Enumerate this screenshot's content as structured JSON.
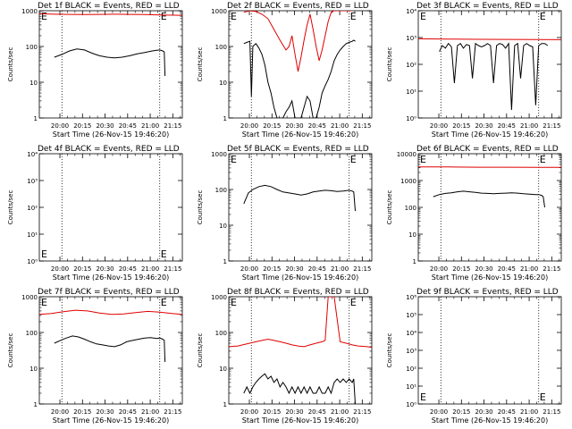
{
  "colors": {
    "events": "#000000",
    "lld": "#e00000",
    "axis": "#000000",
    "background": "#ffffff"
  },
  "common": {
    "ylabel": "Counts/sec",
    "xlabel": "Start Time (26-Nov-15 19:46:20)",
    "xticks": [
      "20:00",
      "20:15",
      "20:30",
      "20:45",
      "21:00",
      "21:15"
    ],
    "xlim_minutes_after_start": [
      0,
      95
    ],
    "xtick_minutes_after_start": [
      13.67,
      28.67,
      43.67,
      58.67,
      73.67,
      88.67
    ],
    "eclipse_marks_minutes_after_start": [
      15,
      80
    ],
    "eclipse_label": "E",
    "yscale": "log"
  },
  "chart_data": [
    {
      "id": "det1f",
      "title": "Det 1f  BLACK = Events, RED = LLD",
      "type": "line",
      "ylim": [
        1,
        1000
      ],
      "yticks": [
        "1",
        "10",
        "100",
        "1000"
      ],
      "ticks_exp": [
        0,
        1,
        2,
        3
      ],
      "minor": true,
      "series": [
        {
          "role": "events",
          "x": [
            10,
            15,
            20,
            25,
            30,
            35,
            40,
            45,
            50,
            55,
            60,
            65,
            70,
            75,
            78,
            80,
            82,
            83,
            83.5
          ],
          "y": [
            50,
            60,
            75,
            85,
            80,
            65,
            55,
            50,
            48,
            50,
            55,
            62,
            68,
            75,
            78,
            80,
            75,
            70,
            15
          ]
        },
        {
          "role": "lld",
          "x": [
            0,
            10,
            20,
            30,
            40,
            50,
            60,
            70,
            80,
            90,
            95
          ],
          "y": [
            820,
            800,
            790,
            780,
            790,
            800,
            790,
            780,
            760,
            750,
            740
          ]
        }
      ]
    },
    {
      "id": "det2f",
      "title": "Det 2f  BLACK = Events, RED = LLD",
      "type": "line",
      "ylim": [
        1,
        1000
      ],
      "yticks": [
        "1",
        "10",
        "100",
        "1000"
      ],
      "ticks_exp": [
        0,
        1,
        2,
        3
      ],
      "minor": true,
      "series": [
        {
          "role": "events",
          "x": [
            10,
            12,
            14,
            15,
            16,
            18,
            20,
            22,
            24,
            26,
            28,
            30,
            32,
            34,
            36,
            38,
            40,
            42,
            44,
            46,
            48,
            50,
            52,
            54,
            56,
            58,
            60,
            62,
            64,
            66,
            68,
            70,
            72,
            74,
            76,
            78,
            80,
            82,
            83,
            84
          ],
          "y": [
            120,
            130,
            140,
            4,
            100,
            120,
            90,
            60,
            30,
            10,
            5,
            2,
            1,
            1,
            1,
            1.5,
            2,
            3,
            1,
            1,
            1,
            2,
            4,
            3,
            1,
            1,
            2,
            5,
            8,
            12,
            20,
            40,
            60,
            80,
            100,
            120,
            130,
            140,
            150,
            140
          ]
        },
        {
          "role": "lld",
          "x": [
            10,
            14,
            18,
            22,
            26,
            30,
            34,
            38,
            40,
            42,
            44,
            46,
            48,
            50,
            52,
            54,
            56,
            58,
            60,
            62,
            64,
            66,
            68,
            70,
            74,
            78,
            82
          ],
          "y": [
            900,
            1000,
            950,
            800,
            600,
            300,
            150,
            80,
            100,
            200,
            60,
            20,
            50,
            150,
            400,
            800,
            300,
            100,
            40,
            80,
            200,
            500,
            900,
            1000,
            1000,
            1000,
            1000
          ]
        }
      ]
    },
    {
      "id": "det3f",
      "title": "Det 3f  BLACK = Events, RED = LLD",
      "type": "line",
      "ylim": [
        1,
        10000.0
      ],
      "yticks": [
        "10⁰",
        "10¹",
        "10²",
        "10³",
        "10⁴"
      ],
      "ticks_exp": [
        0,
        1,
        2,
        3,
        4
      ],
      "minor": false,
      "series": [
        {
          "role": "events",
          "x": [
            14,
            16,
            18,
            20,
            22,
            24,
            26,
            28,
            30,
            32,
            34,
            36,
            38,
            40,
            42,
            44,
            46,
            48,
            50,
            52,
            54,
            56,
            58,
            60,
            62,
            64,
            66,
            68,
            70,
            72,
            74,
            76,
            78,
            80,
            82,
            84,
            86
          ],
          "y": [
            300,
            500,
            400,
            600,
            450,
            20,
            500,
            600,
            400,
            550,
            500,
            30,
            600,
            500,
            450,
            500,
            600,
            500,
            20,
            500,
            600,
            550,
            400,
            600,
            2,
            500,
            600,
            30,
            500,
            600,
            500,
            450,
            3,
            500,
            600,
            600,
            500
          ]
        },
        {
          "role": "lld",
          "x": [
            0,
            20,
            40,
            60,
            80,
            95
          ],
          "y": [
            900,
            880,
            860,
            850,
            840,
            830
          ]
        }
      ]
    },
    {
      "id": "det4f",
      "title": "Det 4f  BLACK = Events, RED = LLD",
      "type": "line",
      "ylim": [
        1,
        10000.0
      ],
      "yticks": [
        "10⁰",
        "10¹",
        "10²",
        "10³",
        "10⁴"
      ],
      "ticks_exp": [
        0,
        1,
        2,
        3,
        4
      ],
      "minor": false,
      "series": []
    },
    {
      "id": "det5f",
      "title": "Det 5f  BLACK = Events, RED = LLD",
      "type": "line",
      "ylim": [
        1,
        1000
      ],
      "yticks": [
        "1",
        "10",
        "100",
        "1000"
      ],
      "ticks_exp": [
        0,
        1,
        2,
        3
      ],
      "minor": true,
      "series": [
        {
          "role": "events",
          "x": [
            10,
            13,
            16,
            20,
            24,
            28,
            32,
            36,
            40,
            44,
            48,
            52,
            56,
            60,
            64,
            68,
            72,
            76,
            80,
            82,
            83,
            84
          ],
          "y": [
            40,
            80,
            100,
            120,
            130,
            120,
            100,
            85,
            80,
            75,
            70,
            75,
            85,
            90,
            95,
            92,
            88,
            90,
            95,
            90,
            85,
            25
          ]
        }
      ]
    },
    {
      "id": "det6f",
      "title": "Det 6f  BLACK = Events, RED = LLD",
      "type": "line",
      "ylim": [
        1,
        10000
      ],
      "yticks": [
        "1",
        "10",
        "100",
        "1000",
        "10000"
      ],
      "ticks_exp": [
        0,
        1,
        2,
        3,
        4
      ],
      "minor": true,
      "series": [
        {
          "role": "events",
          "x": [
            10,
            14,
            18,
            22,
            26,
            30,
            34,
            38,
            42,
            46,
            50,
            54,
            58,
            62,
            66,
            70,
            74,
            78,
            80,
            82,
            83,
            84
          ],
          "y": [
            250,
            300,
            330,
            350,
            380,
            400,
            380,
            360,
            340,
            330,
            320,
            330,
            340,
            350,
            340,
            320,
            310,
            300,
            300,
            280,
            250,
            100
          ]
        },
        {
          "role": "lld",
          "x": [
            0,
            20,
            40,
            60,
            80,
            95
          ],
          "y": [
            3200,
            3200,
            3150,
            3150,
            3100,
            3100
          ]
        }
      ]
    },
    {
      "id": "det7f",
      "title": "Det 7f  BLACK = Events, RED = LLD",
      "type": "line",
      "ylim": [
        1,
        1000
      ],
      "yticks": [
        "1",
        "10",
        "100",
        "1000"
      ],
      "ticks_exp": [
        0,
        1,
        2,
        3
      ],
      "minor": true,
      "series": [
        {
          "role": "events",
          "x": [
            10,
            14,
            18,
            22,
            26,
            30,
            34,
            38,
            42,
            46,
            50,
            54,
            58,
            62,
            66,
            70,
            74,
            78,
            80,
            82,
            83,
            83.5
          ],
          "y": [
            50,
            60,
            70,
            80,
            75,
            65,
            55,
            48,
            45,
            42,
            40,
            45,
            55,
            60,
            65,
            70,
            72,
            68,
            70,
            65,
            60,
            15
          ]
        },
        {
          "role": "lld",
          "x": [
            0,
            8,
            16,
            24,
            32,
            40,
            48,
            56,
            64,
            72,
            80,
            88,
            95
          ],
          "y": [
            320,
            340,
            380,
            420,
            400,
            350,
            320,
            330,
            360,
            390,
            370,
            340,
            320
          ]
        }
      ]
    },
    {
      "id": "det8f",
      "title": "Det 8f  BLACK = Events, RED = LLD",
      "type": "line",
      "ylim": [
        1,
        1000
      ],
      "yticks": [
        "1",
        "10",
        "100",
        "1000"
      ],
      "ticks_exp": [
        0,
        1,
        2,
        3
      ],
      "minor": true,
      "series": [
        {
          "role": "events",
          "x": [
            10,
            12,
            14,
            16,
            18,
            20,
            22,
            24,
            26,
            28,
            30,
            32,
            34,
            36,
            38,
            40,
            42,
            44,
            46,
            48,
            50,
            52,
            54,
            56,
            58,
            60,
            62,
            64,
            66,
            68,
            70,
            72,
            74,
            76,
            78,
            80,
            82,
            83,
            84
          ],
          "y": [
            2,
            3,
            2,
            3,
            4,
            5,
            6,
            7,
            5,
            6,
            4,
            5,
            3,
            4,
            3,
            2,
            3,
            2,
            3,
            2,
            3,
            2,
            3,
            2,
            2,
            3,
            2,
            2,
            3,
            2,
            4,
            5,
            4,
            5,
            4,
            5,
            4,
            5,
            1
          ]
        },
        {
          "role": "lld",
          "x": [
            0,
            6,
            12,
            18,
            22,
            26,
            30,
            34,
            38,
            42,
            46,
            50,
            54,
            58,
            62,
            64,
            66,
            68,
            70,
            74,
            78,
            82,
            86,
            92,
            95
          ],
          "y": [
            40,
            42,
            48,
            55,
            60,
            65,
            60,
            55,
            50,
            45,
            42,
            40,
            45,
            50,
            55,
            60,
            1000,
            1000,
            1000,
            55,
            50,
            45,
            42,
            40,
            38
          ]
        }
      ]
    },
    {
      "id": "det9f",
      "title": "Det 9f  BLACK = Events, RED = LLD",
      "type": "line",
      "ylim": [
        1,
        1000000.0
      ],
      "yticks": [
        "10⁰",
        "10¹",
        "10²",
        "10³",
        "10⁴",
        "10⁵",
        "10⁶"
      ],
      "ticks_exp": [
        0,
        1,
        2,
        3,
        4,
        5,
        6
      ],
      "minor": false,
      "series": []
    }
  ]
}
